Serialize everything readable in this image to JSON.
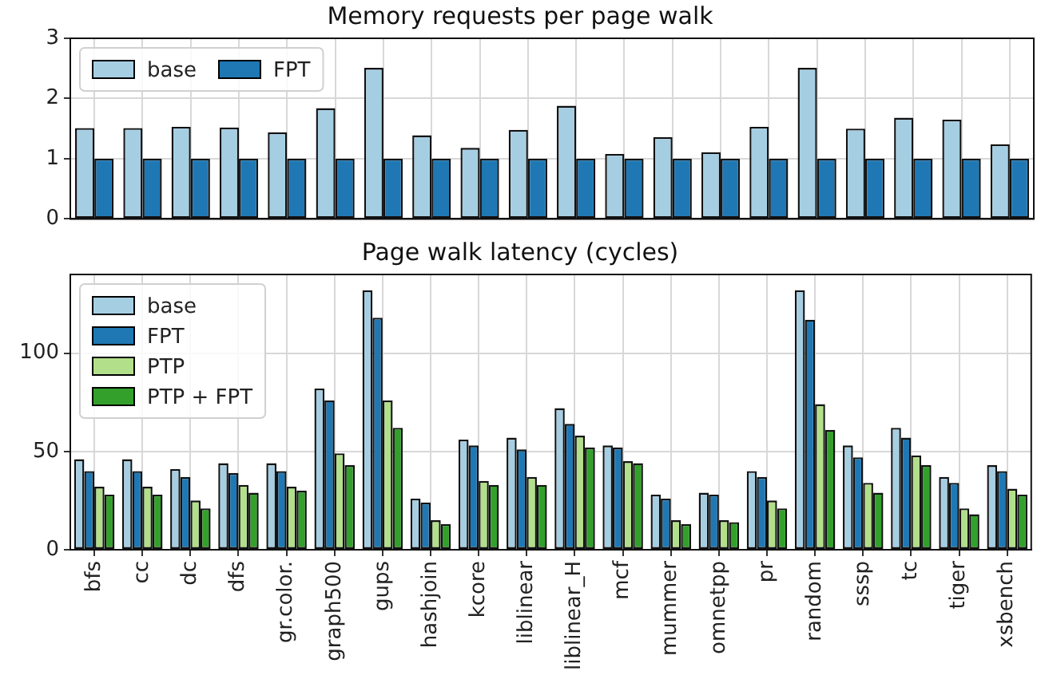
{
  "chart_data": [
    {
      "type": "bar",
      "title": "Memory requests per page walk",
      "categories": [
        null,
        null,
        null,
        null,
        null,
        null,
        null,
        null,
        null,
        null,
        null,
        null,
        null,
        null,
        null,
        null,
        null,
        null,
        null,
        null
      ],
      "series": [
        {
          "name": "base",
          "color": "#a6cee3",
          "values": [
            1.51,
            1.51,
            1.53,
            1.52,
            1.44,
            1.84,
            2.51,
            1.39,
            1.18,
            1.48,
            1.88,
            1.08,
            1.36,
            1.11,
            1.53,
            2.51,
            1.5,
            1.68,
            1.65,
            1.24
          ]
        },
        {
          "name": "FPT",
          "color": "#1f78b4",
          "values": [
            1,
            1,
            1,
            1,
            1,
            1,
            1,
            1,
            1,
            1,
            1,
            1,
            1,
            1,
            1,
            1,
            1,
            1,
            1,
            1
          ]
        }
      ],
      "ylim": [
        0,
        3
      ],
      "yticks": [
        0,
        1,
        2,
        3
      ],
      "grid": true,
      "legend": "top left",
      "tick_labels": "y"
    },
    {
      "type": "bar",
      "title": "Page walk latency (cycles)",
      "categories": [
        "bfs",
        "cc",
        "dc",
        "dfs",
        "gr.color.",
        "graph500",
        "gups",
        "hashjoin",
        "kcore",
        "liblinear",
        "liblinear_H",
        "mcf",
        "mummer",
        "omnetpp",
        "pr",
        "random",
        "sssp",
        "tc",
        "tiger",
        "xsbench"
      ],
      "series": [
        {
          "name": "base",
          "color": "#a6cee3",
          "values": [
            46,
            46,
            41,
            44,
            44,
            82,
            132,
            26,
            56,
            57,
            72,
            53,
            28,
            29,
            40,
            132,
            53,
            62,
            37,
            43
          ]
        },
        {
          "name": "FPT",
          "color": "#1f78b4",
          "values": [
            40,
            40,
            37,
            39,
            40,
            76,
            118,
            24,
            53,
            51,
            64,
            52,
            26,
            28,
            37,
            117,
            47,
            57,
            34,
            40
          ]
        },
        {
          "name": "PTP",
          "color": "#b2df8a",
          "values": [
            32,
            32,
            25,
            33,
            32,
            49,
            76,
            15,
            35,
            37,
            58,
            45,
            15,
            15,
            25,
            74,
            34,
            48,
            21,
            31
          ]
        },
        {
          "name": "PTP + FPT",
          "color": "#33a02c",
          "values": [
            28,
            28,
            21,
            29,
            30,
            43,
            62,
            13,
            33,
            33,
            52,
            44,
            13,
            14,
            21,
            61,
            29,
            43,
            18,
            28
          ]
        }
      ],
      "ylim": [
        0,
        140
      ],
      "yticks": [
        0,
        50,
        100
      ],
      "grid": true,
      "legend": "top left"
    }
  ]
}
